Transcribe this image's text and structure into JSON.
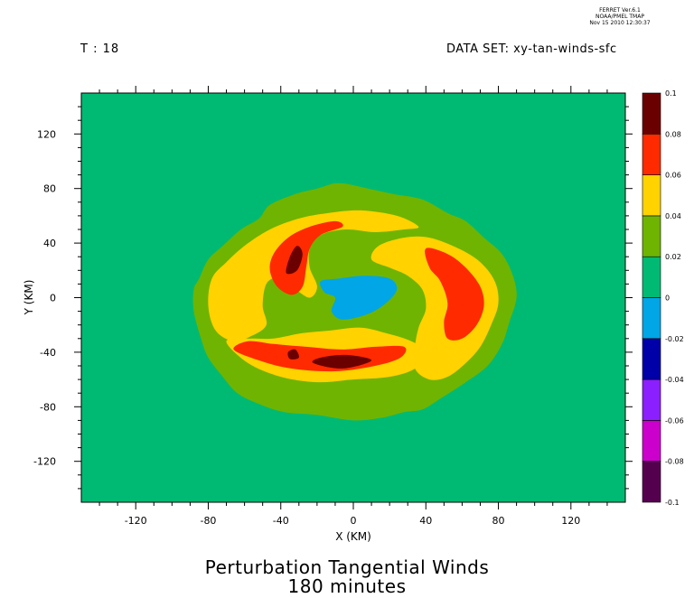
{
  "header": {
    "credit_lines": [
      "FERRET  Ver.6.1",
      "NOAA/PMEL TMAP",
      "Nov 15 2010 12:30:37"
    ],
    "time_label": "T : 18",
    "dataset_label": "DATA SET: xy-tan-winds-sfc"
  },
  "title_lines": [
    "Perturbation Tangential Winds",
    "180 minutes"
  ],
  "chart_data": {
    "type": "heatmap",
    "xlabel": "X (KM)",
    "ylabel": "Y (KM)",
    "xlim": [
      -150,
      150
    ],
    "ylim": [
      -150,
      150
    ],
    "x_ticks": [
      -120,
      -80,
      -40,
      0,
      40,
      80,
      120
    ],
    "y_ticks": [
      120,
      80,
      40,
      0,
      -40,
      -80,
      -120
    ],
    "x_tick_labels": [
      "-120",
      "-80",
      "-40",
      "0",
      "40",
      "80",
      "120"
    ],
    "y_tick_labels": [
      "120",
      "80",
      "40",
      "0",
      "-40",
      "-80",
      "-120"
    ],
    "colorbar": {
      "levels": [
        -0.1,
        -0.08,
        -0.06,
        -0.04,
        -0.02,
        0,
        0.02,
        0.04,
        0.06,
        0.08,
        0.1
      ],
      "level_labels": [
        "-0.1",
        "-0.08",
        "-0.06",
        "-0.04",
        "-0.02",
        "0",
        "0.02",
        "0.04",
        "0.06",
        "0.08",
        "0.1"
      ],
      "colors": [
        "#55004f",
        "#cc00cc",
        "#8c1fff",
        "#0000a8",
        "#00a6e6",
        "#00ba73",
        "#6fb400",
        "#ffd200",
        "#ff2a00",
        "#6b0000"
      ]
    },
    "background_value_range": [
      0,
      0.02
    ],
    "contours": [
      {
        "range": [
          0.02,
          0.04
        ],
        "color": "#6fb400",
        "shape": "outer ring",
        "outline": [
          [
            -85,
            14
          ],
          [
            -80,
            28
          ],
          [
            -72,
            38
          ],
          [
            -62,
            50
          ],
          [
            -52,
            58
          ],
          [
            -46,
            68
          ],
          [
            -32,
            76
          ],
          [
            -20,
            80
          ],
          [
            -8,
            84
          ],
          [
            8,
            80
          ],
          [
            22,
            76
          ],
          [
            38,
            72
          ],
          [
            52,
            62
          ],
          [
            62,
            56
          ],
          [
            72,
            44
          ],
          [
            82,
            32
          ],
          [
            88,
            16
          ],
          [
            90,
            0
          ],
          [
            86,
            -18
          ],
          [
            82,
            -34
          ],
          [
            74,
            -50
          ],
          [
            62,
            -62
          ],
          [
            48,
            -74
          ],
          [
            38,
            -82
          ],
          [
            28,
            -84
          ],
          [
            16,
            -88
          ],
          [
            0,
            -90
          ],
          [
            -20,
            -86
          ],
          [
            -38,
            -84
          ],
          [
            -52,
            -78
          ],
          [
            -64,
            -70
          ],
          [
            -72,
            -58
          ],
          [
            -80,
            -44
          ],
          [
            -84,
            -30
          ],
          [
            -88,
            -10
          ],
          [
            -88,
            6
          ]
        ]
      },
      {
        "range": [
          0.02,
          0.04
        ],
        "color": "#6fb400",
        "shape": "inner lobe",
        "outline": [
          [
            -14,
            30
          ],
          [
            0,
            42
          ],
          [
            20,
            44
          ],
          [
            34,
            42
          ],
          [
            44,
            30
          ],
          [
            46,
            14
          ],
          [
            38,
            6
          ],
          [
            26,
            2
          ],
          [
            14,
            -4
          ],
          [
            10,
            -14
          ],
          [
            -4,
            -24
          ],
          [
            -20,
            -28
          ],
          [
            -30,
            -22
          ],
          [
            -34,
            -8
          ],
          [
            -30,
            10
          ],
          [
            -22,
            22
          ]
        ]
      },
      {
        "range": [
          0.04,
          0.06
        ],
        "color": "#ffd200",
        "shape": "north-west spiral band",
        "outline": [
          [
            -76,
            -24
          ],
          [
            -80,
            -6
          ],
          [
            -78,
            14
          ],
          [
            -70,
            26
          ],
          [
            -60,
            38
          ],
          [
            -46,
            50
          ],
          [
            -30,
            58
          ],
          [
            -14,
            62
          ],
          [
            4,
            64
          ],
          [
            24,
            60
          ],
          [
            36,
            52
          ],
          [
            28,
            50
          ],
          [
            12,
            48
          ],
          [
            -4,
            50
          ],
          [
            -18,
            46
          ],
          [
            -24,
            36
          ],
          [
            -24,
            22
          ],
          [
            -20,
            8
          ],
          [
            -24,
            0
          ],
          [
            -32,
            6
          ],
          [
            -42,
            14
          ],
          [
            -48,
            10
          ],
          [
            -50,
            -6
          ],
          [
            -48,
            -20
          ],
          [
            -56,
            -28
          ],
          [
            -66,
            -32
          ]
        ]
      },
      {
        "range": [
          0.04,
          0.06
        ],
        "color": "#ffd200",
        "shape": "east spiral band",
        "outline": [
          [
            14,
            38
          ],
          [
            28,
            44
          ],
          [
            42,
            44
          ],
          [
            58,
            36
          ],
          [
            70,
            26
          ],
          [
            78,
            12
          ],
          [
            80,
            -4
          ],
          [
            76,
            -20
          ],
          [
            70,
            -36
          ],
          [
            62,
            -48
          ],
          [
            52,
            -58
          ],
          [
            42,
            -60
          ],
          [
            34,
            -52
          ],
          [
            34,
            -36
          ],
          [
            36,
            -22
          ],
          [
            40,
            -8
          ],
          [
            38,
            6
          ],
          [
            30,
            16
          ],
          [
            20,
            22
          ],
          [
            10,
            28
          ]
        ]
      },
      {
        "range": [
          0.04,
          0.06
        ],
        "color": "#ffd200",
        "shape": "south spiral band",
        "outline": [
          [
            -70,
            -32
          ],
          [
            -58,
            -48
          ],
          [
            -40,
            -58
          ],
          [
            -20,
            -62
          ],
          [
            0,
            -60
          ],
          [
            20,
            -58
          ],
          [
            34,
            -52
          ],
          [
            40,
            -40
          ],
          [
            32,
            -32
          ],
          [
            18,
            -26
          ],
          [
            4,
            -22
          ],
          [
            -12,
            -24
          ],
          [
            -28,
            -26
          ],
          [
            -44,
            -30
          ],
          [
            -56,
            -30
          ]
        ]
      },
      {
        "range": [
          0.06,
          0.08
        ],
        "color": "#ff2a00",
        "shape": "north-west maximum",
        "outline": [
          [
            -46,
            20
          ],
          [
            -44,
            32
          ],
          [
            -36,
            44
          ],
          [
            -24,
            52
          ],
          [
            -10,
            56
          ],
          [
            -6,
            52
          ],
          [
            -18,
            46
          ],
          [
            -24,
            36
          ],
          [
            -26,
            22
          ],
          [
            -28,
            8
          ],
          [
            -34,
            2
          ],
          [
            -42,
            8
          ]
        ]
      },
      {
        "range": [
          0.06,
          0.08
        ],
        "color": "#ff2a00",
        "shape": "east maximum",
        "outline": [
          [
            40,
            36
          ],
          [
            52,
            32
          ],
          [
            62,
            22
          ],
          [
            70,
            8
          ],
          [
            72,
            -6
          ],
          [
            68,
            -20
          ],
          [
            60,
            -30
          ],
          [
            52,
            -30
          ],
          [
            50,
            -18
          ],
          [
            52,
            -4
          ],
          [
            48,
            12
          ],
          [
            42,
            22
          ]
        ]
      },
      {
        "range": [
          0.06,
          0.08
        ],
        "color": "#ff2a00",
        "shape": "south maximum",
        "outline": [
          [
            -66,
            -38
          ],
          [
            -52,
            -46
          ],
          [
            -34,
            -52
          ],
          [
            -10,
            -54
          ],
          [
            12,
            -50
          ],
          [
            26,
            -44
          ],
          [
            28,
            -36
          ],
          [
            12,
            -36
          ],
          [
            -6,
            -38
          ],
          [
            -26,
            -36
          ],
          [
            -44,
            -34
          ],
          [
            -58,
            -32
          ]
        ]
      },
      {
        "range": [
          0.08,
          0.1
        ],
        "color": "#6b0000",
        "shape": "north-west core",
        "outline": [
          [
            -37,
            18
          ],
          [
            -35,
            30
          ],
          [
            -31,
            38
          ],
          [
            -28,
            32
          ],
          [
            -31,
            20
          ]
        ]
      },
      {
        "range": [
          0.08,
          0.1
        ],
        "color": "#6b0000",
        "shape": "south core",
        "outline": [
          [
            -22,
            -48
          ],
          [
            -6,
            -52
          ],
          [
            10,
            -46
          ],
          [
            -4,
            -42
          ],
          [
            -18,
            -44
          ]
        ]
      },
      {
        "range": [
          0.08,
          0.1
        ],
        "color": "#6b0000",
        "shape": "south small core",
        "outline": [
          [
            -36,
            -40
          ],
          [
            -32,
            -38
          ],
          [
            -30,
            -44
          ],
          [
            -35,
            -45
          ]
        ]
      },
      {
        "range": [
          -0.02,
          0
        ],
        "color": "#00a6e6",
        "shape": "center minimum",
        "outline": [
          [
            -18,
            12
          ],
          [
            -8,
            14
          ],
          [
            6,
            16
          ],
          [
            20,
            14
          ],
          [
            24,
            6
          ],
          [
            18,
            -4
          ],
          [
            8,
            -12
          ],
          [
            -6,
            -16
          ],
          [
            -12,
            -10
          ],
          [
            -10,
            0
          ],
          [
            -16,
            4
          ]
        ]
      }
    ]
  }
}
